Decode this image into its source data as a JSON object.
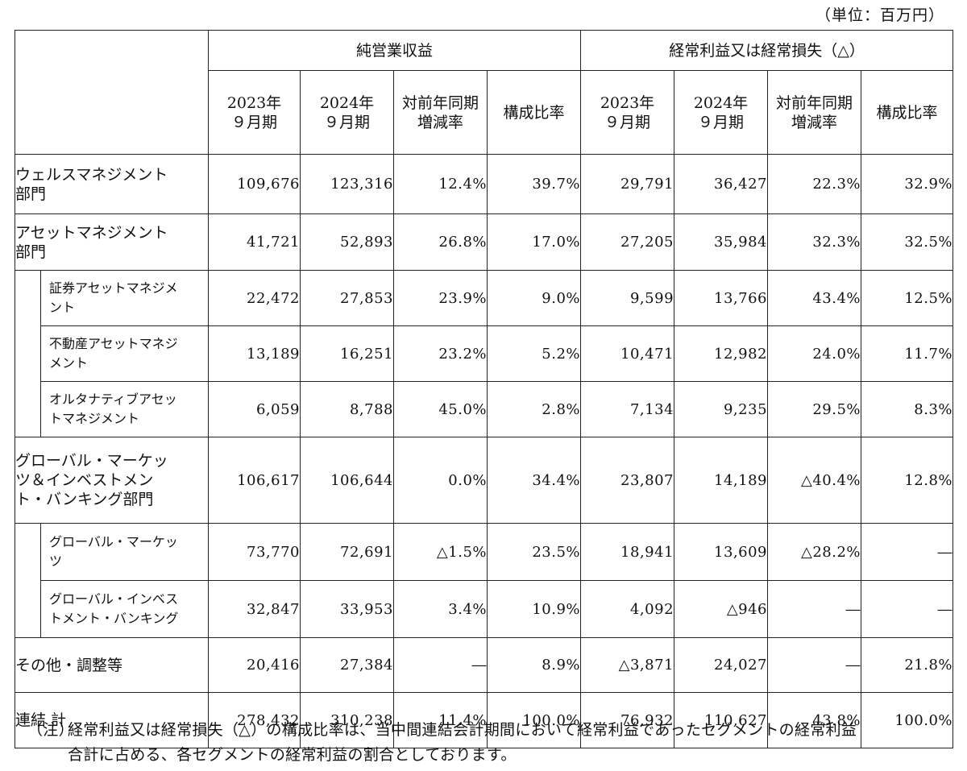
{
  "unit_label": "（単位：百万円）",
  "header": {
    "group_revenue": "純営業収益",
    "group_profit": "経常利益又は経常損失（△）",
    "col_2023_l1": "2023年",
    "col_2023_l2": "９月期",
    "col_2024_l1": "2024年",
    "col_2024_l2": "９月期",
    "col_yoy_l1": "対前年同期",
    "col_yoy_l2": "増減率",
    "col_ratio": "構成比率"
  },
  "rows": [
    {
      "label_l1": "ウェルスマネジメント",
      "label_l2": "部門",
      "label_l3": "",
      "rev_2023": "109,676",
      "rev_2024": "123,316",
      "rev_yoy": "12.4%",
      "rev_ratio": "39.7%",
      "op_2023": "29,791",
      "op_2024": "36,427",
      "op_yoy": "22.3%",
      "op_ratio": "32.9%"
    },
    {
      "label_l1": "アセットマネジメント",
      "label_l2": "部門",
      "label_l3": "",
      "rev_2023": "41,721",
      "rev_2024": "52,893",
      "rev_yoy": "26.8%",
      "rev_ratio": "17.0%",
      "op_2023": "27,205",
      "op_2024": "35,984",
      "op_yoy": "32.3%",
      "op_ratio": "32.5%"
    },
    {
      "label_l1": "証券アセットマネジメ",
      "label_l2": "ント",
      "label_l3": "",
      "rev_2023": "22,472",
      "rev_2024": "27,853",
      "rev_yoy": "23.9%",
      "rev_ratio": "9.0%",
      "op_2023": "9,599",
      "op_2024": "13,766",
      "op_yoy": "43.4%",
      "op_ratio": "12.5%"
    },
    {
      "label_l1": "不動産アセットマネジ",
      "label_l2": "メント",
      "label_l3": "",
      "rev_2023": "13,189",
      "rev_2024": "16,251",
      "rev_yoy": "23.2%",
      "rev_ratio": "5.2%",
      "op_2023": "10,471",
      "op_2024": "12,982",
      "op_yoy": "24.0%",
      "op_ratio": "11.7%"
    },
    {
      "label_l1": "オルタナティブアセッ",
      "label_l2": "トマネジメント",
      "label_l3": "",
      "rev_2023": "6,059",
      "rev_2024": "8,788",
      "rev_yoy": "45.0%",
      "rev_ratio": "2.8%",
      "op_2023": "7,134",
      "op_2024": "9,235",
      "op_yoy": "29.5%",
      "op_ratio": "8.3%"
    },
    {
      "label_l1": "グローバル・マーケッ",
      "label_l2": "ツ＆インベストメン",
      "label_l3": "ト・バンキング部門",
      "rev_2023": "106,617",
      "rev_2024": "106,644",
      "rev_yoy": "0.0%",
      "rev_ratio": "34.4%",
      "op_2023": "23,807",
      "op_2024": "14,189",
      "op_yoy": "△40.4%",
      "op_ratio": "12.8%"
    },
    {
      "label_l1": "グローバル・マーケッ",
      "label_l2": "ツ",
      "label_l3": "",
      "rev_2023": "73,770",
      "rev_2024": "72,691",
      "rev_yoy": "△1.5%",
      "rev_ratio": "23.5%",
      "op_2023": "18,941",
      "op_2024": "13,609",
      "op_yoy": "△28.2%",
      "op_ratio": "―"
    },
    {
      "label_l1": "グローバル・インベス",
      "label_l2": "トメント・バンキング",
      "label_l3": "",
      "rev_2023": "32,847",
      "rev_2024": "33,953",
      "rev_yoy": "3.4%",
      "rev_ratio": "10.9%",
      "op_2023": "4,092",
      "op_2024": "△946",
      "op_yoy": "―",
      "op_ratio": "―"
    },
    {
      "label_l1": "その他・調整等",
      "label_l2": "",
      "label_l3": "",
      "rev_2023": "20,416",
      "rev_2024": "27,384",
      "rev_yoy": "―",
      "rev_ratio": "8.9%",
      "op_2023": "△3,871",
      "op_2024": "24,027",
      "op_yoy": "―",
      "op_ratio": "21.8%"
    },
    {
      "label_l1": "連結 計",
      "label_l2": "",
      "label_l3": "",
      "rev_2023": "278,432",
      "rev_2024": "310,238",
      "rev_yoy": "11.4%",
      "rev_ratio": "100.0%",
      "op_2023": "76,932",
      "op_2024": "110,627",
      "op_yoy": "43.8%",
      "op_ratio": "100.0%"
    }
  ],
  "note": {
    "mark": "（注）",
    "line1": "経常利益又は経常損失（△）の構成比率は、当中間連結会計期間において経常利益であったセグメントの経常利益",
    "line2": "合計に占める、各セグメントの経常利益の割合としております。"
  }
}
